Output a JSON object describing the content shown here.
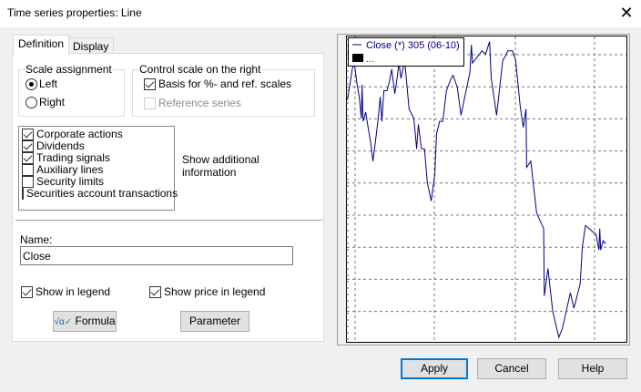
{
  "window": {
    "title": "Time series properties: Line",
    "close_icon": "close-icon"
  },
  "tabs": [
    {
      "label": "Definition",
      "active": true
    },
    {
      "label": "Display",
      "active": false
    }
  ],
  "scale_assignment": {
    "label": "Scale assignment",
    "options": [
      {
        "label": "Left",
        "selected": true
      },
      {
        "label": "Right",
        "selected": false
      }
    ]
  },
  "control_scale": {
    "label": "Control scale on the right",
    "basis": {
      "label": "Basis for %- and ref. scales",
      "checked": true
    },
    "reference": {
      "label": "Reference series",
      "checked": false,
      "disabled": true
    }
  },
  "info_list": {
    "items": [
      {
        "label": "Corporate actions",
        "checked": true
      },
      {
        "label": "Dividends",
        "checked": true
      },
      {
        "label": "Trading signals",
        "checked": true
      },
      {
        "label": "Auxiliary lines",
        "checked": false
      },
      {
        "label": "Security limits",
        "checked": false
      },
      {
        "label": "Securities account transactions",
        "checked": false
      }
    ],
    "caption_line1": "Show additional",
    "caption_line2": "information"
  },
  "name": {
    "label": "Name:",
    "value": "Close"
  },
  "show_in_legend": {
    "label": "Show in legend",
    "checked": true
  },
  "show_price_in_legend": {
    "label": "Show price in legend",
    "checked": true
  },
  "buttons": {
    "formula": "Formula",
    "parameter": "Parameter",
    "apply": "Apply",
    "cancel": "Cancel",
    "help": "Help"
  },
  "colors": {
    "series": "#000080",
    "accent": "#0078d7"
  },
  "chart_data": {
    "type": "line",
    "legend": {
      "entries": [
        "Close (*) 305 (06-10)",
        "..."
      ],
      "placement": "top-left"
    },
    "grid": true,
    "xlim": [
      0,
      100
    ],
    "ylim": [
      0,
      100
    ],
    "series": [
      {
        "name": "Close (*) 305 (06-10)",
        "points": [
          [
            0.5,
            79
          ],
          [
            1.4,
            84
          ],
          [
            2.2,
            89
          ],
          [
            3,
            91
          ],
          [
            3.8,
            85
          ],
          [
            4.7,
            80
          ],
          [
            5.5,
            73
          ],
          [
            5.7,
            84
          ],
          [
            6.1,
            72
          ],
          [
            7,
            75
          ],
          [
            7.9,
            70
          ],
          [
            8.8,
            65
          ],
          [
            9.6,
            59
          ],
          [
            10.6,
            66
          ],
          [
            11.5,
            73
          ],
          [
            12.2,
            80
          ],
          [
            12.8,
            72
          ],
          [
            13.5,
            82
          ],
          [
            14.6,
            82
          ],
          [
            15.5,
            85
          ],
          [
            16.3,
            89
          ],
          [
            17.4,
            81
          ],
          [
            18.2,
            86
          ],
          [
            18.9,
            91
          ],
          [
            19.6,
            86
          ],
          [
            20.9,
            92
          ],
          [
            22.5,
            76
          ],
          [
            24.2,
            73
          ],
          [
            25.2,
            63
          ],
          [
            25.8,
            71
          ],
          [
            26.9,
            63
          ],
          [
            28,
            63
          ],
          [
            29,
            52
          ],
          [
            30.4,
            46
          ],
          [
            31.7,
            55
          ],
          [
            32.3,
            68
          ],
          [
            33.4,
            72
          ],
          [
            34.5,
            72
          ],
          [
            35.8,
            82
          ],
          [
            37.5,
            86
          ],
          [
            38.2,
            87
          ],
          [
            39.7,
            83
          ],
          [
            41,
            74
          ],
          [
            44.2,
            88
          ],
          [
            44.7,
            97
          ],
          [
            45.1,
            91
          ],
          [
            48.5,
            95
          ],
          [
            49.8,
            94
          ],
          [
            51.2,
            98
          ],
          [
            51.8,
            86
          ],
          [
            53.7,
            74
          ],
          [
            55.9,
            92
          ],
          [
            56.7,
            93
          ],
          [
            57.7,
            95
          ],
          [
            59.4,
            95
          ],
          [
            60.5,
            92
          ],
          [
            62.1,
            77
          ],
          [
            63.2,
            70
          ],
          [
            64.2,
            76
          ],
          [
            64.4,
            57
          ],
          [
            65.9,
            59
          ],
          [
            68,
            42
          ],
          [
            70.5,
            37
          ],
          [
            70.7,
            15
          ],
          [
            72,
            24
          ],
          [
            73.7,
            10
          ],
          [
            75.9,
            1.5
          ],
          [
            77.2,
            4.5
          ],
          [
            80,
            16
          ],
          [
            81.3,
            11
          ],
          [
            83.5,
            19
          ],
          [
            84.3,
            31
          ],
          [
            85.4,
            38
          ],
          [
            89.2,
            35
          ],
          [
            90.2,
            30
          ],
          [
            90.5,
            37
          ],
          [
            90.8,
            30
          ],
          [
            91.7,
            33
          ],
          [
            92.6,
            32
          ]
        ]
      }
    ]
  }
}
